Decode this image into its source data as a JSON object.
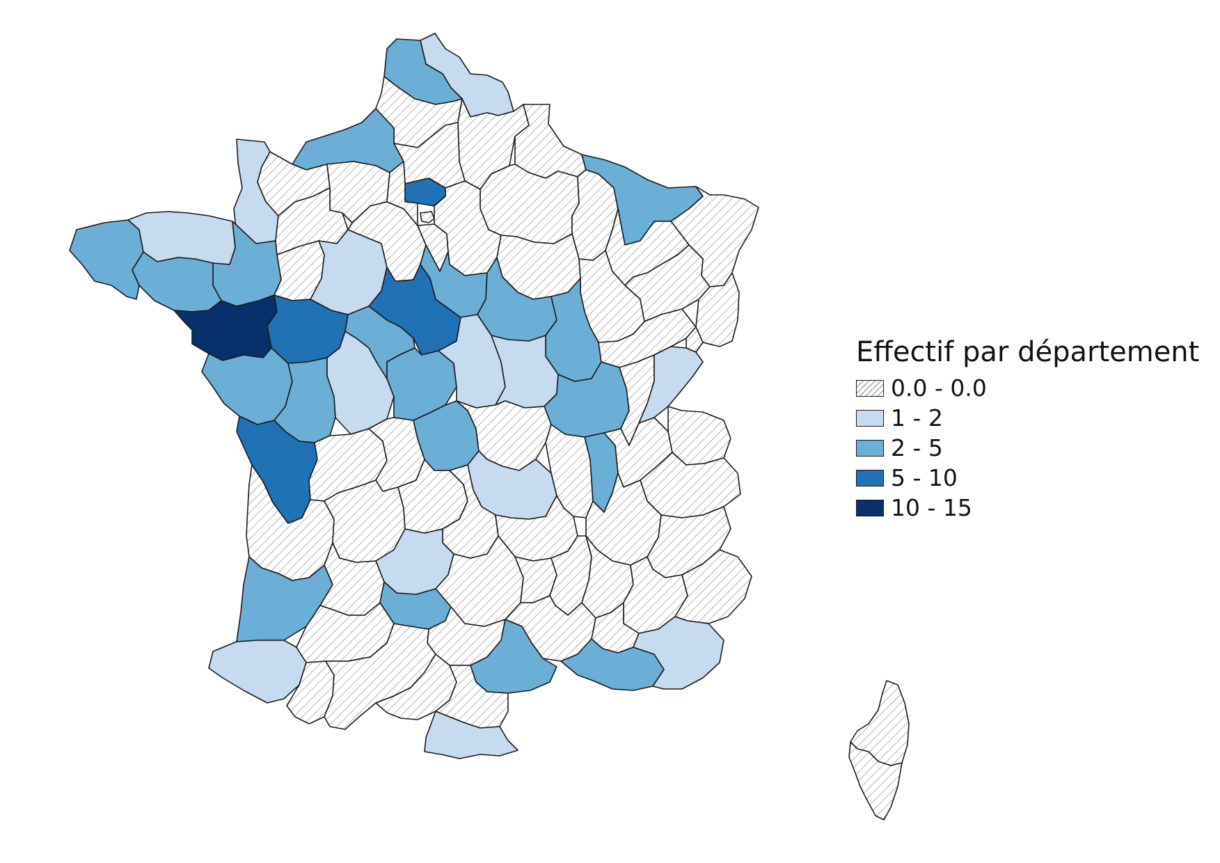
{
  "legend": {
    "title": "Effectif par département",
    "classes": [
      {
        "label": "0.0 - 0.0",
        "key": "c0",
        "fill": "#ffffff",
        "pattern": "hatch"
      },
      {
        "label": "1 - 2",
        "key": "c1",
        "fill": "#c6dbef"
      },
      {
        "label": "2 - 5",
        "key": "c2",
        "fill": "#6baed6"
      },
      {
        "label": "5 - 10",
        "key": "c3",
        "fill": "#2171b5"
      },
      {
        "label": "10 - 15",
        "key": "c4",
        "fill": "#08306b"
      }
    ]
  },
  "colors": {
    "hatch_line": "#b4b4b4",
    "border": "#1a1a1a",
    "background": "#ffffff"
  },
  "departments": [
    {
      "name": "Nord",
      "class": "c1"
    },
    {
      "name": "Pas-de-Calais",
      "class": "c2"
    },
    {
      "name": "Somme",
      "class": "c0"
    },
    {
      "name": "Aisne",
      "class": "c0"
    },
    {
      "name": "Seine-Maritime",
      "class": "c2"
    },
    {
      "name": "Oise",
      "class": "c0"
    },
    {
      "name": "Ardennes",
      "class": "c0"
    },
    {
      "name": "Manche",
      "class": "c1"
    },
    {
      "name": "Calvados",
      "class": "c0"
    },
    {
      "name": "Eure",
      "class": "c0"
    },
    {
      "name": "Val-d'Oise",
      "class": "c3"
    },
    {
      "name": "Paris",
      "class": "c0"
    },
    {
      "name": "Marne",
      "class": "c0"
    },
    {
      "name": "Meuse",
      "class": "c0"
    },
    {
      "name": "Moselle",
      "class": "c2"
    },
    {
      "name": "Bas-Rhin",
      "class": "c0"
    },
    {
      "name": "Finistère",
      "class": "c2"
    },
    {
      "name": "Côtes-d'Armor",
      "class": "c1"
    },
    {
      "name": "Ille-et-Vilaine",
      "class": "c2"
    },
    {
      "name": "Morbihan",
      "class": "c2"
    },
    {
      "name": "Orne",
      "class": "c0"
    },
    {
      "name": "Mayenne",
      "class": "c0"
    },
    {
      "name": "Sarthe",
      "class": "c1"
    },
    {
      "name": "Eure-et-Loir",
      "class": "c0"
    },
    {
      "name": "Yvelines",
      "class": "c0"
    },
    {
      "name": "Essonne",
      "class": "c0"
    },
    {
      "name": "Seine-et-Marne",
      "class": "c0"
    },
    {
      "name": "Aube",
      "class": "c0"
    },
    {
      "name": "Haute-Marne",
      "class": "c0"
    },
    {
      "name": "Meurthe-et-Moselle",
      "class": "c0"
    },
    {
      "name": "Vosges",
      "class": "c0"
    },
    {
      "name": "Haut-Rhin",
      "class": "c0"
    },
    {
      "name": "Loire-Atlantique",
      "class": "c4"
    },
    {
      "name": "Maine-et-Loire",
      "class": "c3"
    },
    {
      "name": "Loir-et-Cher",
      "class": "c3"
    },
    {
      "name": "Loiret",
      "class": "c2"
    },
    {
      "name": "Yonne",
      "class": "c2"
    },
    {
      "name": "Côte-d'Or",
      "class": "c2"
    },
    {
      "name": "Haute-Saône",
      "class": "c0"
    },
    {
      "name": "Territoire de Belfort",
      "class": "c0"
    },
    {
      "name": "Vendée",
      "class": "c2"
    },
    {
      "name": "Deux-Sèvres",
      "class": "c2"
    },
    {
      "name": "Vienne",
      "class": "c1"
    },
    {
      "name": "Indre-et-Loire",
      "class": "c2"
    },
    {
      "name": "Indre",
      "class": "c2"
    },
    {
      "name": "Cher",
      "class": "c1"
    },
    {
      "name": "Nièvre",
      "class": "c1"
    },
    {
      "name": "Saône-et-Loire",
      "class": "c2"
    },
    {
      "name": "Jura",
      "class": "c0"
    },
    {
      "name": "Doubs",
      "class": "c1"
    },
    {
      "name": "Charente-Maritime",
      "class": "c3"
    },
    {
      "name": "Charente",
      "class": "c0"
    },
    {
      "name": "Haute-Vienne",
      "class": "c0"
    },
    {
      "name": "Creuse",
      "class": "c2"
    },
    {
      "name": "Allier",
      "class": "c0"
    },
    {
      "name": "Puy-de-Dôme",
      "class": "c1"
    },
    {
      "name": "Loire",
      "class": "c0"
    },
    {
      "name": "Rhône",
      "class": "c2"
    },
    {
      "name": "Ain",
      "class": "c0"
    },
    {
      "name": "Haute-Savoie",
      "class": "c0"
    },
    {
      "name": "Savoie",
      "class": "c0"
    },
    {
      "name": "Gironde",
      "class": "c0"
    },
    {
      "name": "Dordogne",
      "class": "c0"
    },
    {
      "name": "Corrèze",
      "class": "c0"
    },
    {
      "name": "Cantal",
      "class": "c0"
    },
    {
      "name": "Haute-Loire",
      "class": "c0"
    },
    {
      "name": "Isère",
      "class": "c0"
    },
    {
      "name": "Hautes-Alpes",
      "class": "c0"
    },
    {
      "name": "Lot",
      "class": "c1"
    },
    {
      "name": "Aveyron",
      "class": "c0"
    },
    {
      "name": "Lozère",
      "class": "c0"
    },
    {
      "name": "Ardèche",
      "class": "c0"
    },
    {
      "name": "Drôme",
      "class": "c0"
    },
    {
      "name": "Alpes-de-Haute-Provence",
      "class": "c0"
    },
    {
      "name": "Alpes-Maritimes",
      "class": "c0"
    },
    {
      "name": "Landes",
      "class": "c2"
    },
    {
      "name": "Lot-et-Garonne",
      "class": "c0"
    },
    {
      "name": "Tarn-et-Garonne",
      "class": "c2"
    },
    {
      "name": "Tarn",
      "class": "c0"
    },
    {
      "name": "Gard",
      "class": "c0"
    },
    {
      "name": "Hérault",
      "class": "c2"
    },
    {
      "name": "Vaucluse",
      "class": "c0"
    },
    {
      "name": "Bouches-du-Rhône",
      "class": "c2"
    },
    {
      "name": "Var",
      "class": "c1"
    },
    {
      "name": "Pyrénées-Atlantiques",
      "class": "c1"
    },
    {
      "name": "Gers",
      "class": "c0"
    },
    {
      "name": "Hautes-Pyrénées",
      "class": "c0"
    },
    {
      "name": "Haute-Garonne",
      "class": "c0"
    },
    {
      "name": "Ariège",
      "class": "c0"
    },
    {
      "name": "Aude",
      "class": "c0"
    },
    {
      "name": "Pyrénées-Orientales",
      "class": "c1"
    },
    {
      "name": "Haute-Corse",
      "class": "c0"
    },
    {
      "name": "Corse-du-Sud",
      "class": "c0"
    }
  ]
}
